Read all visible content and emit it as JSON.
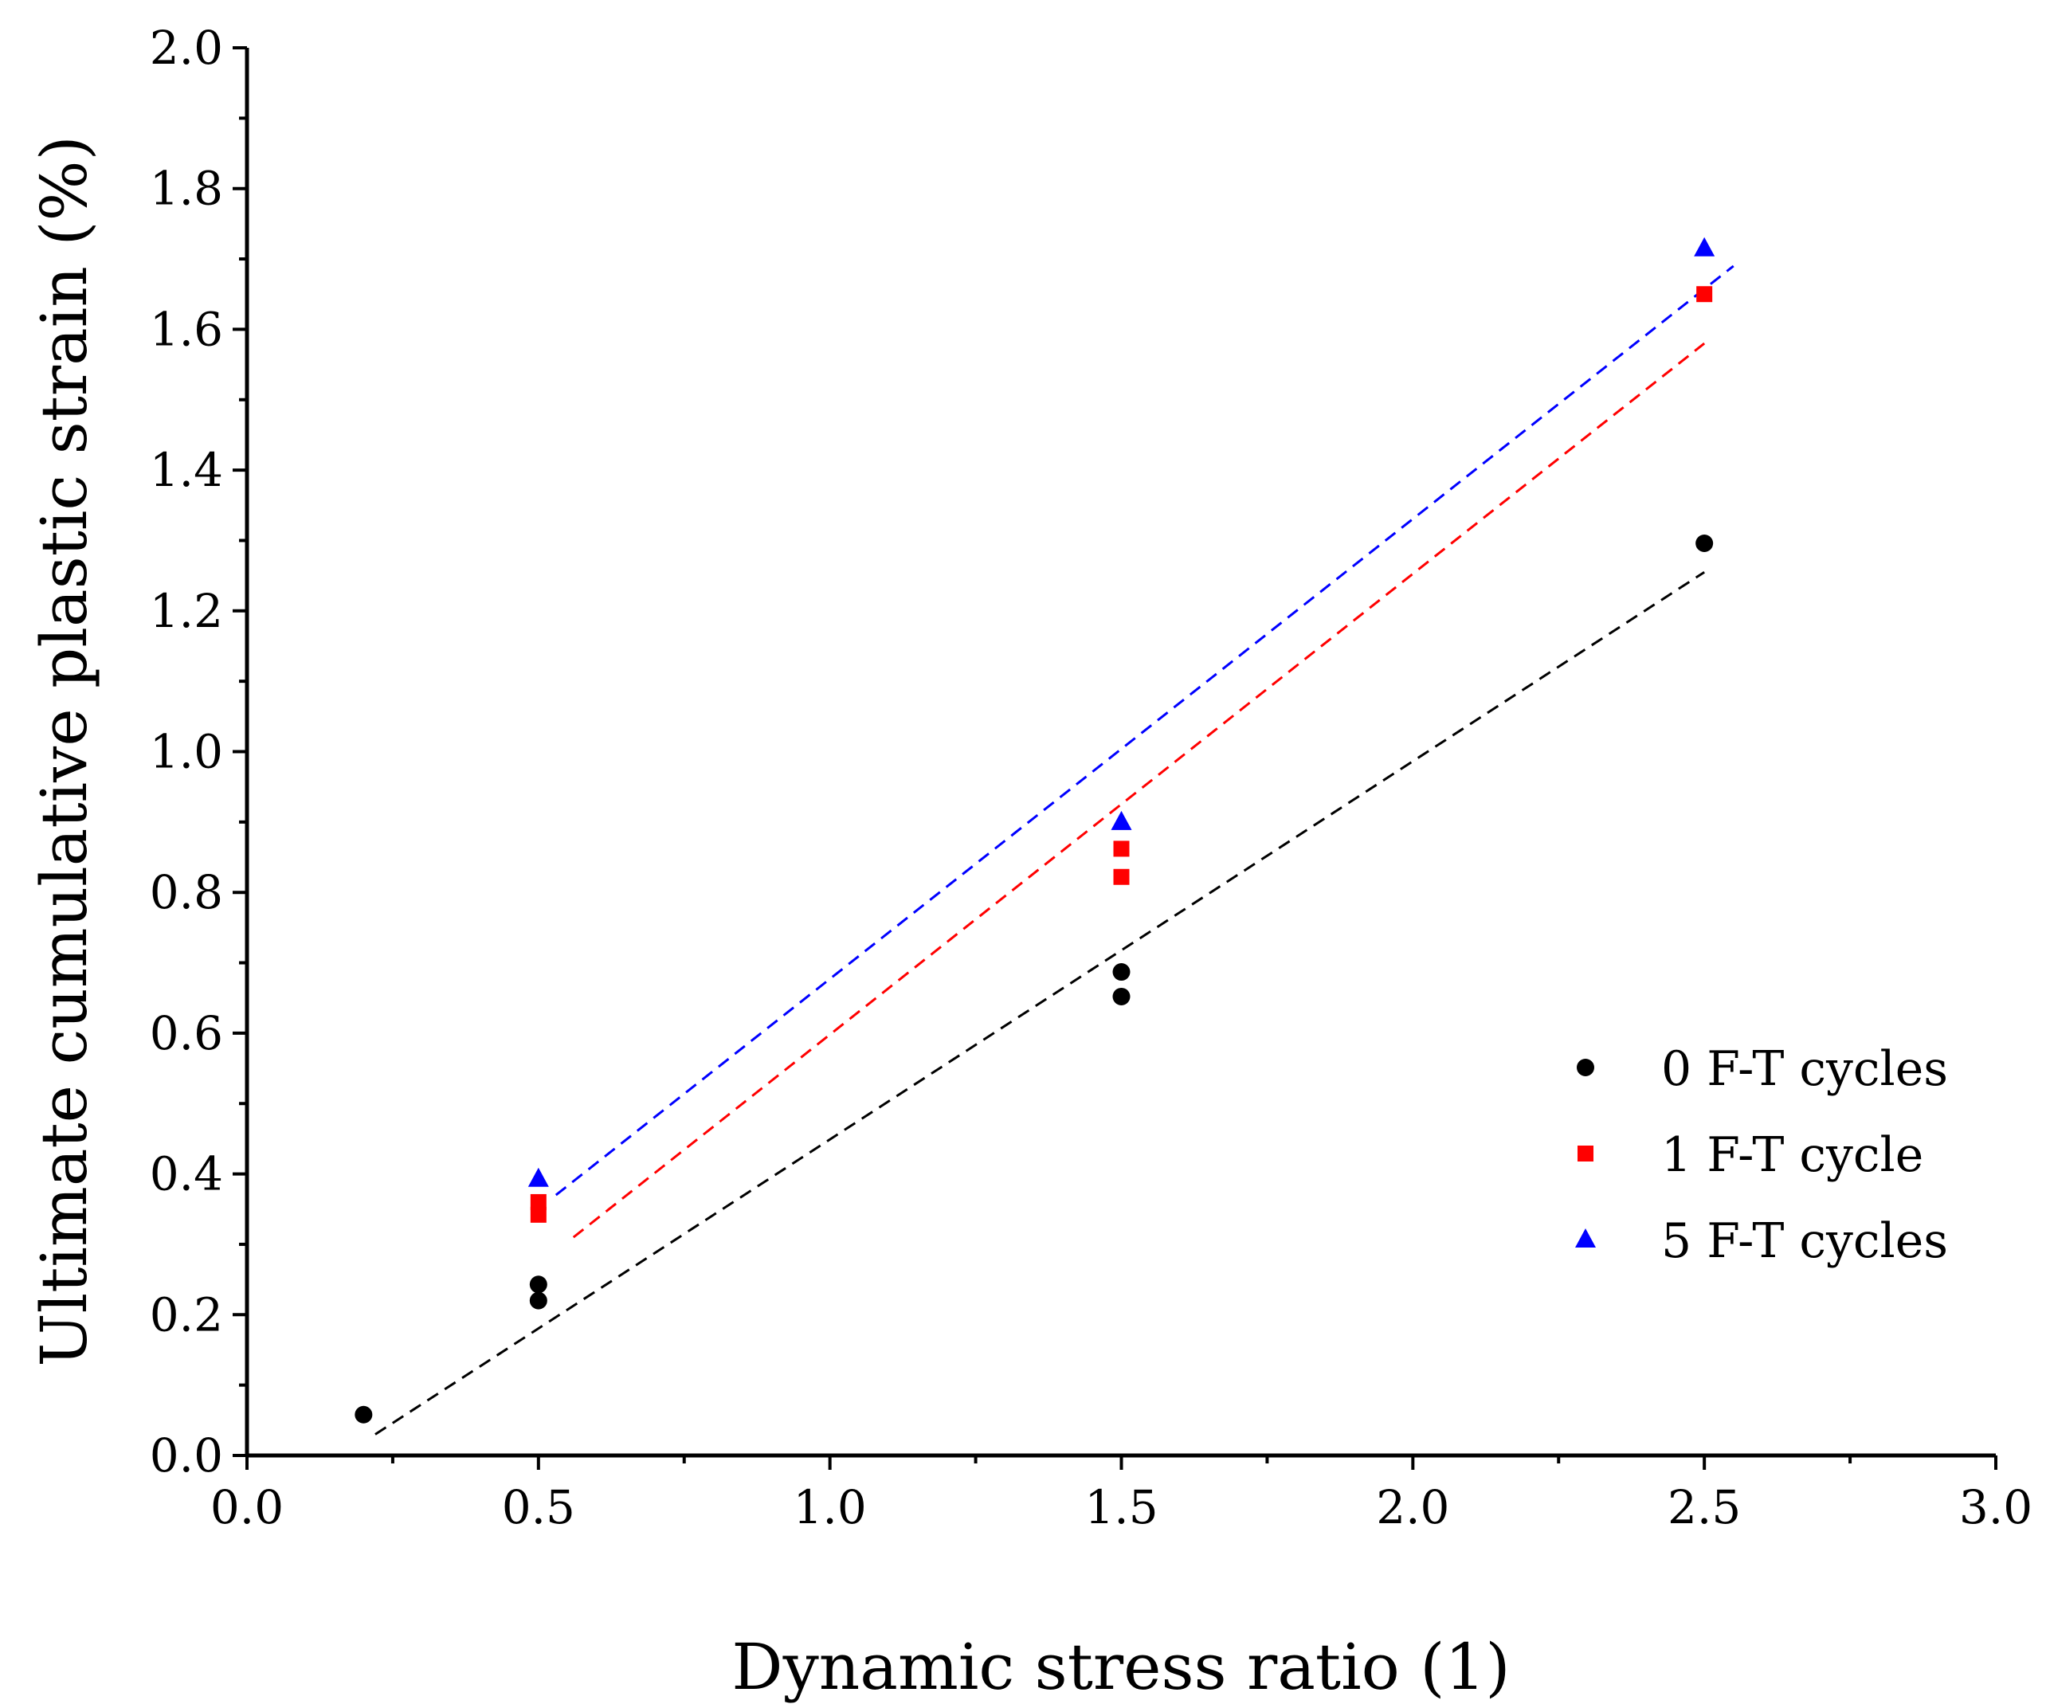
{
  "chart_data": {
    "type": "scatter",
    "title": "",
    "xlabel": "Dynamic stress ratio (1)",
    "ylabel": "Ultimate cumulative plastic strain (%)",
    "xlim": [
      0.0,
      3.0
    ],
    "ylim": [
      0.0,
      2.0
    ],
    "xticks": [
      "0.0",
      "0.5",
      "1.0",
      "1.5",
      "2.0",
      "2.5",
      "3.0"
    ],
    "yticks": [
      "0.0",
      "0.2",
      "0.4",
      "0.6",
      "0.8",
      "1.0",
      "1.2",
      "1.4",
      "1.6",
      "1.8",
      "2.0"
    ],
    "legend_position": "right",
    "series": [
      {
        "name": "0 F-T cycles",
        "marker": "circle",
        "color": "#000000",
        "points": [
          [
            0.2,
            0.058
          ],
          [
            0.5,
            0.243
          ],
          [
            0.5,
            0.22
          ],
          [
            1.5,
            0.687
          ],
          [
            1.5,
            0.652
          ],
          [
            2.5,
            1.296
          ]
        ],
        "fit": {
          "x": [
            0.22,
            2.5
          ],
          "y": [
            0.03,
            1.255
          ],
          "style": "dashed"
        }
      },
      {
        "name": "1 F-T cycle",
        "marker": "square",
        "color": "#ff0000",
        "points": [
          [
            0.5,
            0.36
          ],
          [
            0.5,
            0.342
          ],
          [
            1.5,
            0.862
          ],
          [
            1.5,
            0.822
          ],
          [
            2.5,
            1.65
          ]
        ],
        "fit": {
          "x": [
            0.56,
            2.5
          ],
          "y": [
            0.31,
            1.58
          ],
          "style": "dashed"
        }
      },
      {
        "name": "5 F-T cycles",
        "marker": "triangle",
        "color": "#0000ff",
        "points": [
          [
            0.5,
            0.393
          ],
          [
            1.5,
            0.9
          ],
          [
            2.5,
            1.715
          ]
        ],
        "fit": {
          "x": [
            0.53,
            2.55
          ],
          "y": [
            0.37,
            1.69
          ],
          "style": "dashed"
        }
      }
    ]
  }
}
